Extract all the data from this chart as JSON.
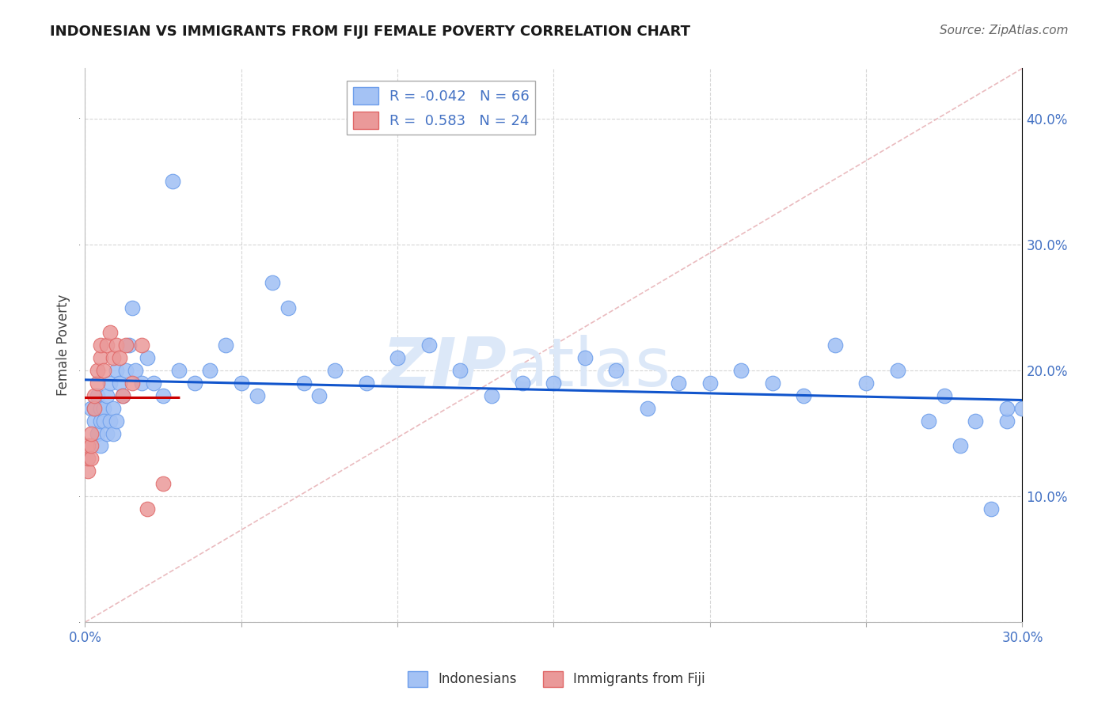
{
  "title": "INDONESIAN VS IMMIGRANTS FROM FIJI FEMALE POVERTY CORRELATION CHART",
  "source": "Source: ZipAtlas.com",
  "ylabel": "Female Poverty",
  "xlim": [
    0.0,
    0.3
  ],
  "ylim": [
    0.0,
    0.44
  ],
  "yticks": [
    0.0,
    0.1,
    0.2,
    0.3,
    0.4
  ],
  "xticks": [
    0.0,
    0.05,
    0.1,
    0.15,
    0.2,
    0.25,
    0.3
  ],
  "R_indonesian": -0.042,
  "N_indonesian": 66,
  "R_fiji": 0.583,
  "N_fiji": 24,
  "blue_color": "#a4c2f4",
  "blue_edge_color": "#6d9eeb",
  "pink_color": "#ea9999",
  "pink_edge_color": "#e06666",
  "blue_line_color": "#1155cc",
  "pink_line_color": "#cc0000",
  "diag_color": "#e8b4b8",
  "grid_color": "#cccccc",
  "watermark_color": "#dce8f8",
  "indonesian_x": [
    0.002,
    0.003,
    0.003,
    0.004,
    0.004,
    0.005,
    0.005,
    0.005,
    0.006,
    0.006,
    0.007,
    0.007,
    0.008,
    0.008,
    0.009,
    0.009,
    0.01,
    0.01,
    0.011,
    0.012,
    0.013,
    0.014,
    0.015,
    0.016,
    0.018,
    0.02,
    0.022,
    0.025,
    0.028,
    0.03,
    0.035,
    0.04,
    0.045,
    0.05,
    0.055,
    0.06,
    0.065,
    0.07,
    0.075,
    0.08,
    0.09,
    0.1,
    0.11,
    0.12,
    0.13,
    0.14,
    0.15,
    0.16,
    0.17,
    0.18,
    0.19,
    0.2,
    0.21,
    0.22,
    0.23,
    0.24,
    0.25,
    0.26,
    0.27,
    0.275,
    0.28,
    0.285,
    0.29,
    0.295,
    0.295,
    0.3
  ],
  "indonesian_y": [
    0.17,
    0.16,
    0.17,
    0.15,
    0.18,
    0.16,
    0.17,
    0.14,
    0.17,
    0.16,
    0.15,
    0.18,
    0.16,
    0.19,
    0.15,
    0.17,
    0.16,
    0.2,
    0.19,
    0.18,
    0.2,
    0.22,
    0.25,
    0.2,
    0.19,
    0.21,
    0.19,
    0.18,
    0.35,
    0.2,
    0.19,
    0.2,
    0.22,
    0.19,
    0.18,
    0.27,
    0.25,
    0.19,
    0.18,
    0.2,
    0.19,
    0.21,
    0.22,
    0.2,
    0.18,
    0.19,
    0.19,
    0.21,
    0.2,
    0.17,
    0.19,
    0.19,
    0.2,
    0.19,
    0.18,
    0.22,
    0.19,
    0.2,
    0.16,
    0.18,
    0.14,
    0.16,
    0.09,
    0.16,
    0.17,
    0.17
  ],
  "fiji_x": [
    0.001,
    0.001,
    0.001,
    0.002,
    0.002,
    0.002,
    0.003,
    0.003,
    0.004,
    0.004,
    0.005,
    0.005,
    0.006,
    0.007,
    0.008,
    0.009,
    0.01,
    0.011,
    0.012,
    0.013,
    0.015,
    0.018,
    0.02,
    0.025
  ],
  "fiji_y": [
    0.12,
    0.13,
    0.14,
    0.13,
    0.14,
    0.15,
    0.17,
    0.18,
    0.19,
    0.2,
    0.21,
    0.22,
    0.2,
    0.22,
    0.23,
    0.21,
    0.22,
    0.21,
    0.18,
    0.22,
    0.19,
    0.22,
    0.09,
    0.11
  ]
}
